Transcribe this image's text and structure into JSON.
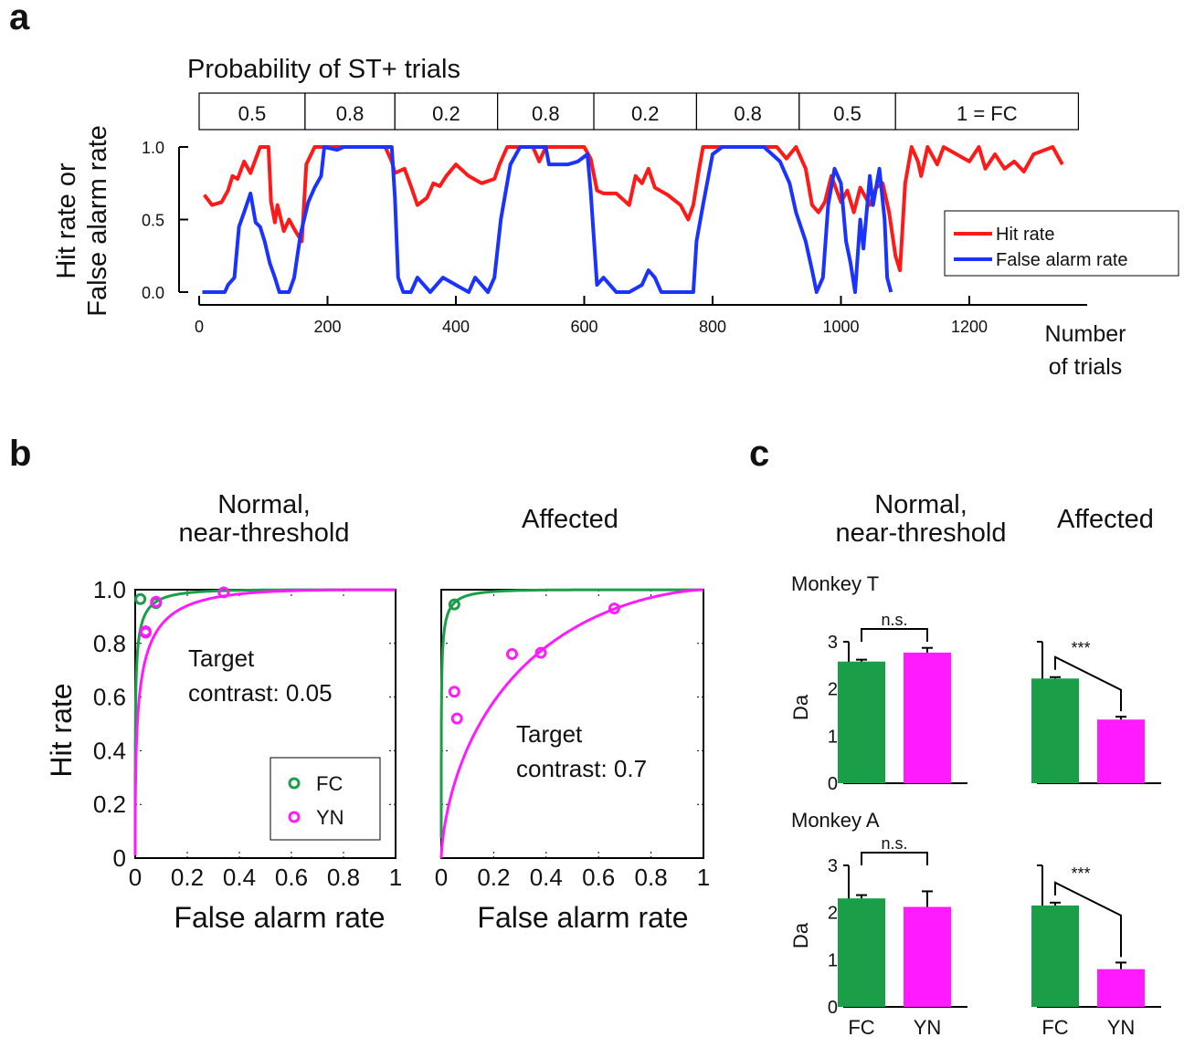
{
  "colors": {
    "hit": "#ff1a1a",
    "fa": "#1a33ff",
    "fc": "#1a9e47",
    "yn": "#ff1aff"
  },
  "panel_a": {
    "letter": "a",
    "prob_title": "Probability of ST+ trials",
    "prob_blocks": [
      {
        "label": "0.5",
        "start": 0,
        "end": 165
      },
      {
        "label": "0.8",
        "start": 165,
        "end": 305
      },
      {
        "label": "0.2",
        "start": 305,
        "end": 465
      },
      {
        "label": "0.8",
        "start": 465,
        "end": 615
      },
      {
        "label": "0.2",
        "start": 615,
        "end": 775
      },
      {
        "label": "0.8",
        "start": 775,
        "end": 935
      },
      {
        "label": "0.5",
        "start": 935,
        "end": 1085
      },
      {
        "label": "1 = FC",
        "start": 1085,
        "end": 1370
      }
    ],
    "ylabel_line1": "Hit rate or",
    "ylabel_line2": "False alarm rate",
    "xlabel_line1": "Number",
    "xlabel_line2": "of trials",
    "legend": {
      "hit": "Hit rate",
      "fa": "False alarm rate"
    }
  },
  "panel_b": {
    "letter": "b",
    "titles": {
      "normal_1": "Normal,",
      "normal_2": "near-threshold",
      "affected": "Affected"
    },
    "ylabel": "Hit rate",
    "xlabel": "False alarm rate",
    "annot_normal_1": "Target",
    "annot_normal_2": "contrast: 0.05",
    "annot_affected_1": "Target",
    "annot_affected_2": "contrast: 0.7",
    "legend": {
      "fc": "FC",
      "yn": "YN"
    }
  },
  "panel_c": {
    "letter": "c",
    "titles": {
      "normal_1": "Normal,",
      "normal_2": "near-threshold",
      "affected": "Affected"
    },
    "monkey_t": "Monkey T",
    "monkey_a": "Monkey A",
    "ylabel": "Da",
    "sig_ns": "n.s.",
    "sig_star": "***"
  },
  "chart_data": [
    {
      "type": "line",
      "panel": "a",
      "xlim": [
        0,
        1370
      ],
      "ylim": [
        0,
        1
      ],
      "x_ticks": [
        0,
        200,
        400,
        600,
        800,
        1000,
        1200
      ],
      "y_ticks": [
        0,
        0.5,
        1
      ],
      "y_tick_labels": [
        "0.0",
        "0.5",
        "1.0"
      ],
      "series": [
        {
          "name": "Hit rate",
          "points": [
            [
              8,
              0.67
            ],
            [
              20,
              0.6
            ],
            [
              35,
              0.62
            ],
            [
              45,
              0.7
            ],
            [
              52,
              0.8
            ],
            [
              60,
              0.78
            ],
            [
              70,
              0.9
            ],
            [
              80,
              0.82
            ],
            [
              95,
              1.0
            ],
            [
              108,
              1.0
            ],
            [
              112,
              0.62
            ],
            [
              118,
              0.48
            ],
            [
              122,
              0.6
            ],
            [
              132,
              0.42
            ],
            [
              140,
              0.5
            ],
            [
              150,
              0.42
            ],
            [
              160,
              0.35
            ],
            [
              167,
              0.88
            ],
            [
              180,
              1.0
            ],
            [
              290,
              1.0
            ],
            [
              300,
              0.9
            ],
            [
              305,
              0.82
            ],
            [
              320,
              0.85
            ],
            [
              330,
              0.73
            ],
            [
              340,
              0.6
            ],
            [
              355,
              0.65
            ],
            [
              365,
              0.75
            ],
            [
              375,
              0.73
            ],
            [
              385,
              0.8
            ],
            [
              400,
              0.88
            ],
            [
              420,
              0.8
            ],
            [
              440,
              0.75
            ],
            [
              460,
              0.78
            ],
            [
              468,
              0.88
            ],
            [
              480,
              1.0
            ],
            [
              520,
              1.0
            ],
            [
              530,
              0.9
            ],
            [
              540,
              1.0
            ],
            [
              600,
              1.0
            ],
            [
              610,
              0.92
            ],
            [
              620,
              0.7
            ],
            [
              630,
              0.68
            ],
            [
              650,
              0.68
            ],
            [
              670,
              0.6
            ],
            [
              680,
              0.8
            ],
            [
              690,
              0.75
            ],
            [
              700,
              0.85
            ],
            [
              710,
              0.72
            ],
            [
              730,
              0.67
            ],
            [
              750,
              0.6
            ],
            [
              762,
              0.5
            ],
            [
              770,
              0.6
            ],
            [
              778,
              0.82
            ],
            [
              785,
              1.0
            ],
            [
              900,
              1.0
            ],
            [
              915,
              0.92
            ],
            [
              930,
              1.0
            ],
            [
              945,
              0.85
            ],
            [
              955,
              0.6
            ],
            [
              965,
              0.55
            ],
            [
              975,
              0.62
            ],
            [
              985,
              0.8
            ],
            [
              1000,
              0.62
            ],
            [
              1010,
              0.7
            ],
            [
              1020,
              0.55
            ],
            [
              1030,
              0.72
            ],
            [
              1045,
              0.6
            ],
            [
              1055,
              0.72
            ],
            [
              1065,
              0.75
            ],
            [
              1075,
              0.55
            ],
            [
              1085,
              0.25
            ],
            [
              1092,
              0.15
            ],
            [
              1100,
              0.75
            ],
            [
              1110,
              1.0
            ],
            [
              1120,
              0.9
            ],
            [
              1125,
              0.8
            ],
            [
              1135,
              1.0
            ],
            [
              1150,
              0.88
            ],
            [
              1160,
              1.0
            ],
            [
              1200,
              0.9
            ],
            [
              1215,
              1.0
            ],
            [
              1225,
              0.85
            ],
            [
              1240,
              0.95
            ],
            [
              1255,
              0.85
            ],
            [
              1270,
              0.9
            ],
            [
              1285,
              0.83
            ],
            [
              1300,
              0.95
            ],
            [
              1330,
              1.0
            ],
            [
              1345,
              0.88
            ]
          ]
        },
        {
          "name": "False alarm rate",
          "points": [
            [
              5,
              0
            ],
            [
              40,
              0
            ],
            [
              45,
              0.05
            ],
            [
              55,
              0.1
            ],
            [
              62,
              0.45
            ],
            [
              70,
              0.55
            ],
            [
              80,
              0.68
            ],
            [
              88,
              0.48
            ],
            [
              95,
              0.45
            ],
            [
              102,
              0.35
            ],
            [
              110,
              0.2
            ],
            [
              118,
              0.1
            ],
            [
              125,
              0
            ],
            [
              140,
              0
            ],
            [
              148,
              0.1
            ],
            [
              158,
              0.4
            ],
            [
              170,
              0.62
            ],
            [
              180,
              0.72
            ],
            [
              190,
              0.8
            ],
            [
              195,
              1.0
            ],
            [
              215,
              0.98
            ],
            [
              225,
              1.0
            ],
            [
              300,
              1.0
            ],
            [
              305,
              0.65
            ],
            [
              310,
              0.1
            ],
            [
              318,
              0
            ],
            [
              330,
              0
            ],
            [
              340,
              0.1
            ],
            [
              360,
              0
            ],
            [
              380,
              0.1
            ],
            [
              400,
              0.05
            ],
            [
              420,
              0
            ],
            [
              430,
              0.1
            ],
            [
              450,
              0
            ],
            [
              460,
              0.1
            ],
            [
              470,
              0.5
            ],
            [
              485,
              0.88
            ],
            [
              500,
              1.0
            ],
            [
              540,
              1.0
            ],
            [
              545,
              0.88
            ],
            [
              575,
              0.88
            ],
            [
              590,
              0.9
            ],
            [
              605,
              0.95
            ],
            [
              610,
              0.7
            ],
            [
              620,
              0.05
            ],
            [
              630,
              0.1
            ],
            [
              650,
              0
            ],
            [
              670,
              0
            ],
            [
              690,
              0.05
            ],
            [
              700,
              0.15
            ],
            [
              710,
              0.1
            ],
            [
              720,
              0
            ],
            [
              770,
              0
            ],
            [
              775,
              0.35
            ],
            [
              785,
              0.6
            ],
            [
              800,
              0.95
            ],
            [
              815,
              1.0
            ],
            [
              880,
              1.0
            ],
            [
              905,
              0.9
            ],
            [
              920,
              0.75
            ],
            [
              930,
              0.55
            ],
            [
              945,
              0.35
            ],
            [
              955,
              0.15
            ],
            [
              962,
              0
            ],
            [
              972,
              0.1
            ],
            [
              980,
              0.6
            ],
            [
              990,
              0.85
            ],
            [
              1000,
              0.75
            ],
            [
              1008,
              0.35
            ],
            [
              1015,
              0.2
            ],
            [
              1022,
              0
            ],
            [
              1030,
              0.5
            ],
            [
              1035,
              0.3
            ],
            [
              1045,
              0.8
            ],
            [
              1050,
              0.6
            ],
            [
              1060,
              0.85
            ],
            [
              1068,
              0.5
            ],
            [
              1072,
              0.1
            ],
            [
              1078,
              0.0
            ]
          ]
        }
      ]
    },
    {
      "type": "scatter",
      "panel": "b-normal",
      "xlim": [
        0,
        1
      ],
      "ylim": [
        0,
        1
      ],
      "x_ticks": [
        0,
        0.2,
        0.4,
        0.6,
        0.8,
        1
      ],
      "x_tick_labels": [
        "0",
        "0.2",
        "0.4",
        "0.6",
        "0.8",
        "1"
      ],
      "y_ticks": [
        0,
        0.2,
        0.4,
        0.6,
        0.8,
        1.0
      ],
      "y_tick_labels": [
        "0",
        "0.2",
        "0.4",
        "0.6",
        "0.8",
        "1.0"
      ],
      "series": [
        {
          "name": "FC",
          "points": [
            [
              0.02,
              0.965
            ],
            [
              0.08,
              0.95
            ]
          ],
          "curve_dprime": 3.1
        },
        {
          "name": "YN",
          "points": [
            [
              0.04,
              0.84
            ],
            [
              0.04,
              0.845
            ],
            [
              0.08,
              0.955
            ],
            [
              0.34,
              0.99
            ]
          ],
          "curve_dprime": 2.4
        }
      ]
    },
    {
      "type": "scatter",
      "panel": "b-affected",
      "xlim": [
        0,
        1
      ],
      "ylim": [
        0,
        1
      ],
      "x_ticks": [
        0,
        0.2,
        0.4,
        0.6,
        0.8,
        1
      ],
      "x_tick_labels": [
        "0",
        "0.2",
        "0.4",
        "0.6",
        "0.8",
        "1"
      ],
      "series": [
        {
          "name": "FC",
          "points": [
            [
              0.05,
              0.945
            ]
          ],
          "curve_dprime": 3.3
        },
        {
          "name": "YN",
          "points": [
            [
              0.05,
              0.62
            ],
            [
              0.06,
              0.52
            ],
            [
              0.27,
              0.76
            ],
            [
              0.38,
              0.765
            ],
            [
              0.66,
              0.93
            ]
          ],
          "curve_dprime": 1.05
        }
      ]
    },
    {
      "type": "bar",
      "panel": "c-monkeyT-normal",
      "categories": [
        "FC",
        "YN"
      ],
      "values": [
        2.58,
        2.77
      ],
      "errors": [
        0.04,
        0.1
      ],
      "ylim": [
        0,
        3
      ],
      "y_ticks": [
        0,
        1,
        2,
        3
      ],
      "sig": "n.s."
    },
    {
      "type": "bar",
      "panel": "c-monkeyT-affected",
      "categories": [
        "FC",
        "YN"
      ],
      "values": [
        2.22,
        1.35
      ],
      "errors": [
        0.03,
        0.06
      ],
      "ylim": [
        0,
        3
      ],
      "y_ticks": [
        0,
        1,
        2,
        3
      ],
      "sig": "***"
    },
    {
      "type": "bar",
      "panel": "c-monkeyA-normal",
      "categories": [
        "FC",
        "YN"
      ],
      "values": [
        2.3,
        2.12
      ],
      "errors": [
        0.07,
        0.33
      ],
      "ylim": [
        0,
        3
      ],
      "y_ticks": [
        0,
        1,
        2,
        3
      ],
      "sig": "n.s."
    },
    {
      "type": "bar",
      "panel": "c-monkeyA-affected",
      "categories": [
        "FC",
        "YN"
      ],
      "values": [
        2.15,
        0.8
      ],
      "errors": [
        0.06,
        0.14
      ],
      "ylim": [
        0,
        3
      ],
      "y_ticks": [
        0,
        1,
        2,
        3
      ],
      "sig": "***"
    }
  ]
}
